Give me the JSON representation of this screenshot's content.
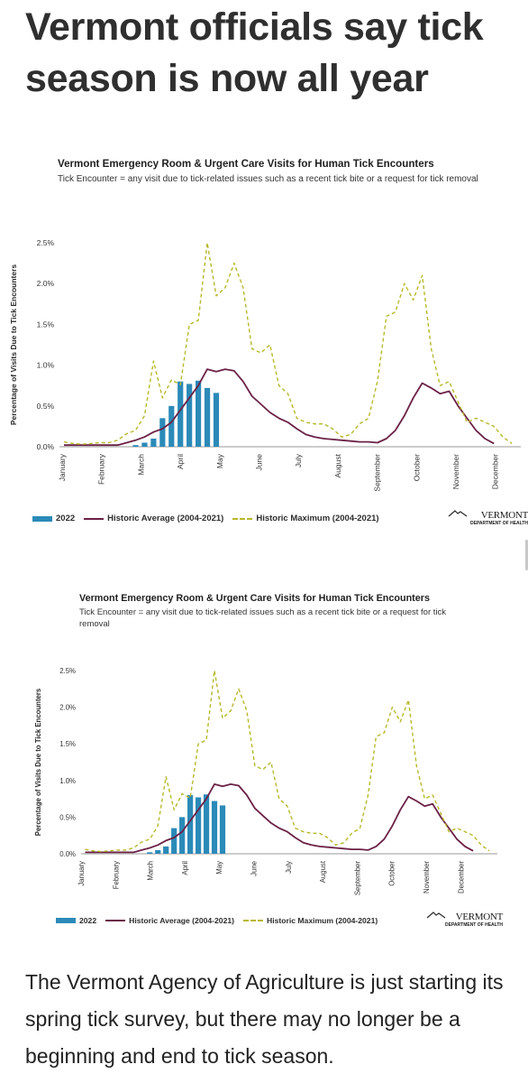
{
  "headline": "Vermont officials say tick season is now all year",
  "body_text": "The Vermont Agency of Agriculture is just starting its spring tick survey, but there may no longer be a beginning and end to tick season.",
  "chart_common": {
    "title": "Vermont Emergency Room & Urgent Care Visits for Human Tick Encounters",
    "subtitle": "Tick Encounter = any visit due to tick-related issues such as a recent tick bite or a request for tick removal",
    "ylabel": "Percentage of Visits Due to Tick Encounters",
    "yticks": [
      "0.0%",
      "0.5%",
      "1.0%",
      "1.5%",
      "2.0%",
      "2.5%"
    ],
    "months": [
      "January",
      "February",
      "March",
      "April",
      "May",
      "June",
      "July",
      "August",
      "September",
      "October",
      "November",
      "December"
    ],
    "legend": {
      "bar": "2022",
      "avg": "Historic Average (2004-2021)",
      "max": "Historic Maximum (2004-2021)"
    },
    "logo": {
      "name": "VERMONT",
      "dept": "DEPARTMENT OF HEALTH"
    }
  },
  "chart_data": [
    {
      "type": "bar",
      "title": "Vermont Emergency Room & Urgent Care Visits for Human Tick Encounters",
      "ylabel": "Percentage of Visits Due to Tick Encounters",
      "ylim": [
        0,
        2.5
      ],
      "x_unit": "week of year",
      "grid": false,
      "legend_position": "bottom",
      "series": [
        {
          "name": "2022",
          "type": "bar",
          "color": "#2b8ab8",
          "x": [
            9,
            10,
            11,
            12,
            13,
            14,
            15,
            16,
            17,
            18
          ],
          "values": [
            0.02,
            0.05,
            0.1,
            0.35,
            0.5,
            0.8,
            0.77,
            0.81,
            0.72,
            0.66
          ]
        },
        {
          "name": "Historic Average (2004-2021)",
          "type": "line",
          "color": "#6b2146",
          "x": [
            1,
            3,
            5,
            7,
            8,
            9,
            10,
            11,
            12,
            13,
            14,
            15,
            16,
            17,
            18,
            19,
            20,
            21,
            22,
            23,
            24,
            25,
            26,
            27,
            28,
            29,
            30,
            31,
            32,
            33,
            34,
            35,
            36,
            37,
            38,
            39,
            40,
            41,
            42,
            43,
            44,
            45,
            46,
            47,
            48,
            49
          ],
          "values": [
            0.02,
            0.02,
            0.02,
            0.02,
            0.05,
            0.08,
            0.12,
            0.18,
            0.22,
            0.3,
            0.45,
            0.6,
            0.75,
            0.95,
            0.92,
            0.95,
            0.93,
            0.8,
            0.62,
            0.52,
            0.42,
            0.35,
            0.3,
            0.22,
            0.15,
            0.12,
            0.1,
            0.09,
            0.08,
            0.07,
            0.06,
            0.06,
            0.05,
            0.1,
            0.2,
            0.38,
            0.6,
            0.78,
            0.72,
            0.65,
            0.68,
            0.5,
            0.35,
            0.2,
            0.1,
            0.04
          ]
        },
        {
          "name": "Historic Maximum (2004-2021)",
          "type": "dashed-line",
          "color": "#b8b82a",
          "x": [
            1,
            2,
            3,
            4,
            5,
            6,
            7,
            8,
            9,
            10,
            11,
            12,
            13,
            14,
            15,
            16,
            17,
            18,
            19,
            20,
            21,
            22,
            23,
            24,
            25,
            26,
            27,
            28,
            29,
            30,
            31,
            32,
            33,
            34,
            35,
            36,
            37,
            38,
            39,
            40,
            41,
            42,
            43,
            44,
            45,
            46,
            47,
            48,
            49,
            50,
            51
          ],
          "values": [
            0.06,
            0.04,
            0.03,
            0.04,
            0.05,
            0.05,
            0.08,
            0.16,
            0.2,
            0.38,
            1.05,
            0.6,
            0.82,
            0.76,
            1.5,
            1.55,
            2.5,
            1.85,
            1.95,
            2.25,
            1.95,
            1.2,
            1.15,
            1.25,
            0.75,
            0.65,
            0.35,
            0.3,
            0.28,
            0.28,
            0.22,
            0.12,
            0.15,
            0.28,
            0.35,
            0.8,
            1.6,
            1.65,
            2.0,
            1.8,
            2.1,
            1.2,
            0.75,
            0.8,
            0.55,
            0.3,
            0.35,
            0.3,
            0.25,
            0.12,
            0.04
          ]
        }
      ]
    },
    {
      "type": "bar",
      "title": "Vermont Emergency Room & Urgent Care Visits for Human Tick Encounters",
      "ylabel": "Percentage of Visits Due to Tick Encounters",
      "ylim": [
        0,
        2.5
      ],
      "x_unit": "week of year",
      "grid": false,
      "legend_position": "bottom",
      "series": [
        {
          "name": "2022",
          "type": "bar",
          "color": "#2b8ab8",
          "x": [
            9,
            10,
            11,
            12,
            13,
            14,
            15,
            16,
            17,
            18
          ],
          "values": [
            0.02,
            0.05,
            0.1,
            0.35,
            0.5,
            0.8,
            0.77,
            0.81,
            0.72,
            0.66
          ]
        },
        {
          "name": "Historic Average (2004-2021)",
          "type": "line",
          "color": "#6b2146",
          "x": [
            1,
            3,
            5,
            7,
            8,
            9,
            10,
            11,
            12,
            13,
            14,
            15,
            16,
            17,
            18,
            19,
            20,
            21,
            22,
            23,
            24,
            25,
            26,
            27,
            28,
            29,
            30,
            31,
            32,
            33,
            34,
            35,
            36,
            37,
            38,
            39,
            40,
            41,
            42,
            43,
            44,
            45,
            46,
            47,
            48,
            49
          ],
          "values": [
            0.02,
            0.02,
            0.02,
            0.02,
            0.05,
            0.08,
            0.12,
            0.18,
            0.22,
            0.3,
            0.45,
            0.6,
            0.75,
            0.95,
            0.92,
            0.95,
            0.93,
            0.8,
            0.62,
            0.52,
            0.42,
            0.35,
            0.3,
            0.22,
            0.15,
            0.12,
            0.1,
            0.09,
            0.08,
            0.07,
            0.06,
            0.06,
            0.05,
            0.1,
            0.2,
            0.38,
            0.6,
            0.78,
            0.72,
            0.65,
            0.68,
            0.5,
            0.35,
            0.2,
            0.1,
            0.04
          ]
        },
        {
          "name": "Historic Maximum (2004-2021)",
          "type": "dashed-line",
          "color": "#b8b82a",
          "x": [
            1,
            2,
            3,
            4,
            5,
            6,
            7,
            8,
            9,
            10,
            11,
            12,
            13,
            14,
            15,
            16,
            17,
            18,
            19,
            20,
            21,
            22,
            23,
            24,
            25,
            26,
            27,
            28,
            29,
            30,
            31,
            32,
            33,
            34,
            35,
            36,
            37,
            38,
            39,
            40,
            41,
            42,
            43,
            44,
            45,
            46,
            47,
            48,
            49,
            50,
            51
          ],
          "values": [
            0.06,
            0.04,
            0.03,
            0.04,
            0.05,
            0.05,
            0.08,
            0.16,
            0.2,
            0.38,
            1.05,
            0.6,
            0.82,
            0.76,
            1.5,
            1.55,
            2.5,
            1.85,
            1.95,
            2.25,
            1.95,
            1.2,
            1.15,
            1.25,
            0.75,
            0.65,
            0.35,
            0.3,
            0.28,
            0.28,
            0.22,
            0.12,
            0.15,
            0.28,
            0.35,
            0.8,
            1.6,
            1.65,
            2.0,
            1.8,
            2.1,
            1.2,
            0.75,
            0.8,
            0.55,
            0.3,
            0.35,
            0.3,
            0.25,
            0.12,
            0.04
          ]
        }
      ]
    }
  ]
}
